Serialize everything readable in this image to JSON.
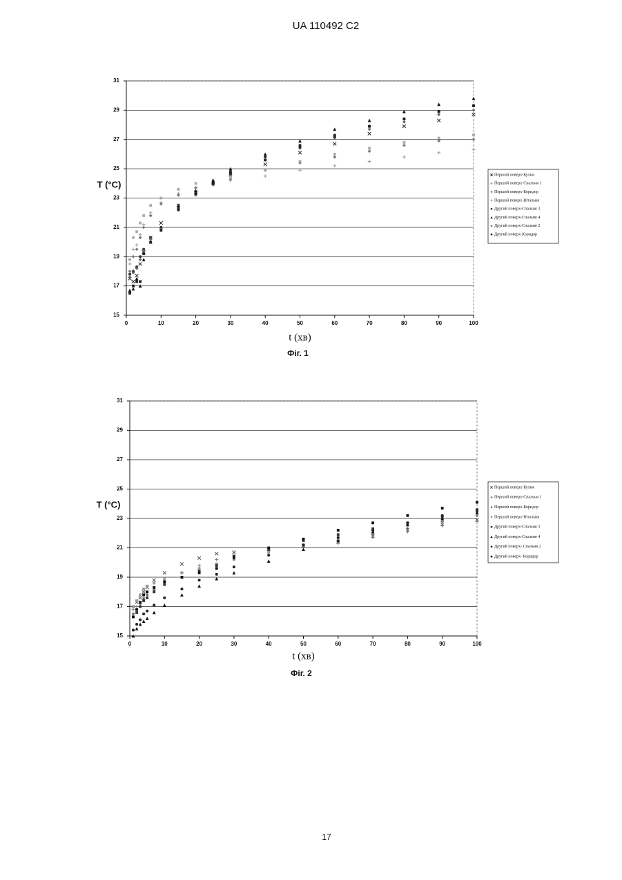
{
  "header": "UA   110492   C2",
  "page_number": "17",
  "chart_data": [
    {
      "type": "scatter",
      "caption": "Фіг. 1",
      "x_label": "t (хв)",
      "y_label": "T (°C)",
      "xlim": [
        0,
        100
      ],
      "xticks": [
        0,
        10,
        20,
        30,
        40,
        50,
        60,
        70,
        80,
        90,
        100
      ],
      "ylim": [
        15,
        31
      ],
      "yticks": [
        15,
        17,
        19,
        21,
        23,
        25,
        27,
        29,
        31
      ],
      "grid": true,
      "legend": "right",
      "x": [
        1,
        2,
        3,
        4,
        5,
        7,
        10,
        15,
        20,
        25,
        30,
        40,
        50,
        60,
        70,
        80,
        90,
        100
      ],
      "series": [
        {
          "name": "Перший поверх-Кухня",
          "color": "#222222",
          "marker": "x",
          "values": [
            17.5,
            17.3,
            17.7,
            18.5,
            19.3,
            20.3,
            21.3,
            22.5,
            23.4,
            24.0,
            24.6,
            25.3,
            26.1,
            26.7,
            27.4,
            27.9,
            28.3,
            28.7
          ]
        },
        {
          "name": "Перший поверх-Спальня 1",
          "color": "#999999",
          "marker": "plus",
          "values": [
            18.5,
            19.5,
            19.8,
            20.5,
            21.2,
            22.0,
            22.7,
            23.3,
            23.7,
            24.0,
            24.2,
            24.5,
            24.9,
            25.2,
            25.5,
            25.8,
            26.1,
            26.3
          ]
        },
        {
          "name": "Перший поверх-Коридор",
          "color": "#777777",
          "marker": "diamond",
          "values": [
            18.0,
            19.0,
            19.5,
            20.3,
            21.0,
            21.8,
            22.6,
            23.2,
            23.7,
            24.0,
            24.3,
            24.9,
            25.4,
            25.8,
            26.2,
            26.6,
            26.9,
            27.0
          ]
        },
        {
          "name": "Перший поверх-Вітальня",
          "color": "#aaaaaa",
          "marker": "square",
          "values": [
            18.8,
            20.3,
            20.7,
            21.3,
            21.8,
            22.5,
            23.0,
            23.6,
            24.0,
            24.2,
            24.4,
            24.9,
            25.5,
            26.0,
            26.4,
            26.8,
            27.1,
            27.3
          ]
        },
        {
          "name": "Другий поверх-Спальня 3",
          "color": "#333333",
          "marker": "circle",
          "values": [
            17.8,
            18.0,
            18.3,
            19.0,
            19.5,
            20.3,
            21.0,
            22.3,
            23.3,
            24.0,
            24.8,
            25.8,
            26.6,
            27.3,
            27.9,
            28.4,
            28.9,
            29.3
          ]
        },
        {
          "name": "Другий поверх-Спальня 4",
          "color": "#111111",
          "marker": "triangle",
          "values": [
            16.7,
            16.8,
            17.5,
            17.0,
            18.8,
            20.0,
            21.0,
            22.5,
            23.5,
            24.2,
            25.0,
            26.0,
            26.9,
            27.7,
            28.3,
            28.9,
            29.4,
            29.8
          ]
        },
        {
          "name": "Другий поверх-Спальня 2",
          "color": "#666666",
          "marker": "diamond",
          "values": [
            17.6,
            17.9,
            18.2,
            18.8,
            19.4,
            20.2,
            20.9,
            22.2,
            23.2,
            23.9,
            24.6,
            25.6,
            26.4,
            27.1,
            27.7,
            28.2,
            28.7,
            29.0
          ]
        },
        {
          "name": "Другий поверх-Коридор",
          "color": "#222222",
          "marker": "square",
          "values": [
            16.5,
            17.0,
            17.3,
            17.3,
            19.2,
            20.0,
            20.8,
            22.2,
            23.3,
            24.0,
            24.7,
            25.6,
            26.5,
            27.2,
            27.9,
            28.4,
            28.9,
            29.3
          ]
        }
      ]
    },
    {
      "type": "scatter",
      "caption": "Фіг. 2",
      "x_label": "t (хв)",
      "y_label": "T (°C)",
      "xlim": [
        0,
        100
      ],
      "xticks": [
        0,
        10,
        20,
        30,
        40,
        50,
        60,
        70,
        80,
        90,
        100
      ],
      "ylim": [
        15,
        31
      ],
      "yticks": [
        15,
        17,
        19,
        21,
        23,
        25,
        27,
        29,
        31
      ],
      "grid": true,
      "legend": "right",
      "x": [
        1,
        2,
        3,
        4,
        5,
        7,
        10,
        15,
        20,
        25,
        30,
        40,
        50,
        60,
        70,
        80,
        90,
        100
      ],
      "series": [
        {
          "name": "Перший поверх-Кухня",
          "color": "#555555",
          "marker": "x",
          "values": [
            17.0,
            17.3,
            17.6,
            18.0,
            18.3,
            18.8,
            19.3,
            19.9,
            20.3,
            20.6,
            20.7,
            20.9,
            21.1,
            21.4,
            21.8,
            22.2,
            22.6,
            22.9
          ]
        },
        {
          "name": "Перший поверх-Спальня 1",
          "color": "#777777",
          "marker": "plus",
          "values": [
            16.8,
            17.0,
            17.2,
            17.6,
            17.8,
            18.2,
            18.7,
            19.3,
            19.8,
            20.2,
            20.5,
            20.8,
            21.0,
            21.3,
            21.7,
            22.1,
            22.5,
            22.8
          ]
        },
        {
          "name": "Перший поверх-Коридор",
          "color": "#666666",
          "marker": "diamond",
          "values": [
            16.5,
            16.8,
            17.2,
            17.5,
            17.8,
            18.1,
            18.6,
            19.0,
            19.5,
            19.9,
            20.3,
            20.8,
            21.1,
            21.5,
            21.9,
            22.3,
            22.8,
            23.2
          ]
        },
        {
          "name": "Перший поверх-Вітальня",
          "color": "#999999",
          "marker": "square",
          "values": [
            17.0,
            17.4,
            17.8,
            18.2,
            18.4,
            18.6,
            18.9,
            19.3,
            19.6,
            19.9,
            20.2,
            20.7,
            21.2,
            21.6,
            22.0,
            22.5,
            22.9,
            23.3
          ]
        },
        {
          "name": "Другий поверх-Спальня 3",
          "color": "#333333",
          "marker": "square",
          "values": [
            16.3,
            16.6,
            17.0,
            17.4,
            17.6,
            18.0,
            18.5,
            19.0,
            19.4,
            19.8,
            20.3,
            20.9,
            21.5,
            21.9,
            22.3,
            22.7,
            23.1,
            23.5
          ]
        },
        {
          "name": "Другий поверх-Спальня 4",
          "color": "#111111",
          "marker": "triangle",
          "values": [
            15.0,
            15.5,
            15.8,
            16.0,
            16.2,
            16.6,
            17.1,
            17.8,
            18.4,
            18.9,
            19.3,
            20.1,
            20.9,
            21.5,
            22.1,
            22.6,
            23.0,
            23.4
          ]
        },
        {
          "name": "Другий поверх- Спальня 2",
          "color": "#222222",
          "marker": "circle",
          "values": [
            15.4,
            15.8,
            16.1,
            16.5,
            16.7,
            17.1,
            17.6,
            18.2,
            18.8,
            19.2,
            19.7,
            20.5,
            21.2,
            21.7,
            22.2,
            22.7,
            23.2,
            23.6
          ]
        },
        {
          "name": "Другий поверх- Коридор",
          "color": "#111111",
          "marker": "square",
          "values": [
            16.3,
            16.8,
            17.3,
            17.8,
            18.0,
            18.3,
            18.7,
            19.0,
            19.3,
            19.6,
            20.4,
            21.0,
            21.6,
            22.2,
            22.7,
            23.2,
            23.7,
            24.1
          ]
        }
      ]
    }
  ]
}
